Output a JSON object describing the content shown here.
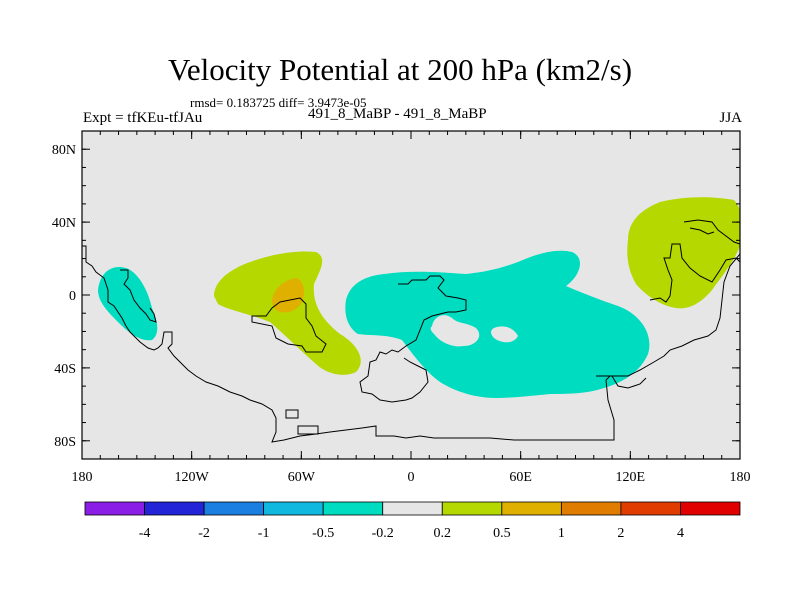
{
  "title": "Velocity Potential at 200 hPa (km2/s)",
  "stats_line": "rmsd= 0.183725 diff= 3.9473e-05",
  "left_subtitle": "Expt = tfKEu-tfJAu",
  "center_subtitle": "491_8_MaBP - 491_8_MaBP",
  "right_subtitle": "JJA",
  "map": {
    "projection": "cylindrical-equidistant",
    "lon_range": [
      -180,
      180
    ],
    "lat_range": [
      -90,
      90
    ],
    "background_color": "#e6e6e6",
    "x_ticks": [
      {
        "value": -180,
        "label": "180"
      },
      {
        "value": -120,
        "label": "120W"
      },
      {
        "value": -60,
        "label": "60W"
      },
      {
        "value": 0,
        "label": "0"
      },
      {
        "value": 60,
        "label": "60E"
      },
      {
        "value": 120,
        "label": "120E"
      },
      {
        "value": 180,
        "label": "180"
      }
    ],
    "y_ticks": [
      {
        "value": 80,
        "label": "80N"
      },
      {
        "value": 40,
        "label": "40N"
      },
      {
        "value": 0,
        "label": "0"
      },
      {
        "value": -40,
        "label": "40S"
      },
      {
        "value": -80,
        "label": "80S"
      }
    ]
  },
  "colorbar": {
    "colors": [
      "#8a1ee6",
      "#2323d8",
      "#1a7fe0",
      "#10b8e0",
      "#00dcc0",
      "#e6e6e6",
      "#b4d800",
      "#e0b000",
      "#e07c00",
      "#e03c00",
      "#e00000"
    ],
    "labels": [
      "-4",
      "-2",
      "-1",
      "-0.5",
      "-0.2",
      "0.2",
      "0.5",
      "1",
      "2",
      "4"
    ]
  },
  "colors": {
    "negative_contour_fill": "#00dcc0",
    "positive_contour_fill": "#b4d800",
    "positive_max_fill": "#e0b000"
  }
}
